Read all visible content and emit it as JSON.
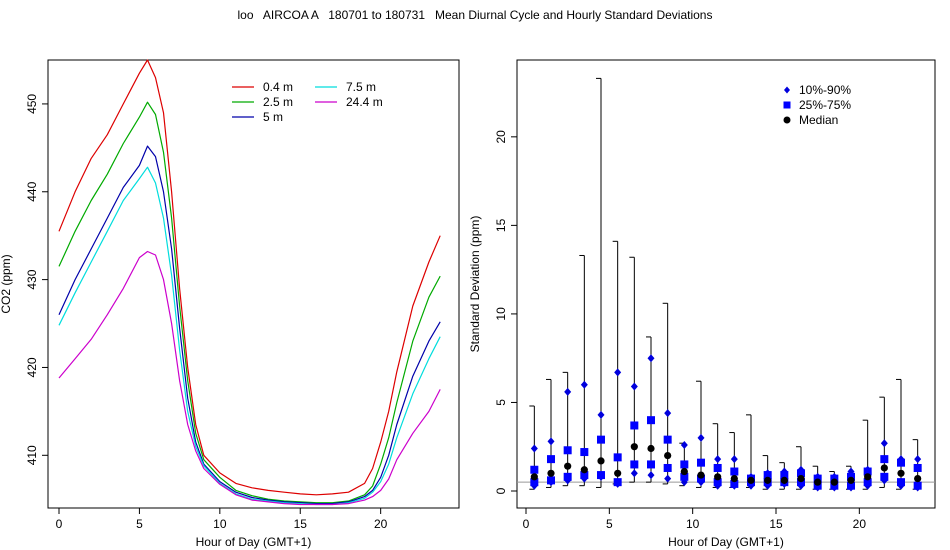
{
  "title": "loo   AIRCOA A   180701 to 180731   Mean Diurnal Cycle and Hourly Standard Deviations",
  "chart_data": [
    {
      "type": "line",
      "xlabel": "Hour of Day (GMT+1)",
      "ylabel": "CO2 (ppm)",
      "xlim": [
        0,
        24
      ],
      "ylim": [
        404,
        455
      ],
      "xticks": [
        "0",
        "5",
        "10",
        "15",
        "20"
      ],
      "yticks": [
        "410",
        "420",
        "430",
        "440",
        "450"
      ],
      "legend_position": "top-right",
      "x": [
        0,
        1,
        2,
        3,
        4,
        5,
        5.5,
        6,
        6.5,
        7,
        7.5,
        8,
        8.5,
        9,
        10,
        11,
        12,
        13,
        14,
        15,
        16,
        17,
        18,
        19,
        19.5,
        20,
        20.5,
        21,
        22,
        23,
        23.7
      ],
      "series": [
        {
          "name": "0.4 m",
          "color": "#dd0000",
          "values": [
            435.5,
            440.0,
            443.8,
            446.5,
            450.0,
            453.5,
            455.0,
            453.0,
            449.0,
            440.0,
            429.0,
            420.0,
            413.5,
            410.0,
            408.0,
            406.8,
            406.3,
            406.0,
            405.8,
            405.6,
            405.5,
            405.6,
            405.8,
            406.8,
            408.5,
            411.5,
            415.0,
            419.5,
            427.0,
            432.0,
            435.0
          ]
        },
        {
          "name": "2.5 m",
          "color": "#00aa00",
          "values": [
            431.5,
            435.5,
            439.0,
            442.0,
            445.5,
            448.5,
            450.2,
            448.8,
            444.5,
            437.0,
            427.0,
            418.5,
            412.5,
            409.5,
            407.5,
            406.0,
            405.4,
            405.0,
            404.8,
            404.7,
            404.6,
            404.6,
            404.8,
            405.5,
            406.5,
            409.0,
            412.0,
            416.0,
            423.0,
            428.0,
            430.4
          ]
        },
        {
          "name": "5 m",
          "color": "#0000aa",
          "values": [
            426.0,
            430.0,
            433.5,
            437.0,
            440.5,
            443.0,
            445.2,
            444.0,
            440.0,
            433.5,
            424.5,
            416.5,
            411.5,
            409.0,
            407.0,
            405.8,
            405.2,
            404.9,
            404.7,
            404.6,
            404.5,
            404.5,
            404.7,
            405.3,
            406.0,
            407.5,
            410.0,
            413.5,
            419.0,
            423.0,
            425.2
          ]
        },
        {
          "name": "7.5 m",
          "color": "#00dddd",
          "values": [
            424.8,
            428.5,
            432.0,
            435.5,
            439.0,
            441.5,
            442.8,
            441.0,
            437.0,
            430.5,
            422.0,
            415.0,
            411.0,
            408.8,
            406.8,
            405.6,
            405.0,
            404.8,
            404.6,
            404.5,
            404.4,
            404.4,
            404.6,
            405.1,
            405.8,
            407.0,
            409.0,
            412.0,
            417.0,
            421.0,
            423.5
          ]
        },
        {
          "name": "24.4 m",
          "color": "#cc00cc",
          "values": [
            418.8,
            421.0,
            423.2,
            426.0,
            429.0,
            432.5,
            433.2,
            432.8,
            430.0,
            425.0,
            418.5,
            413.5,
            410.5,
            408.5,
            406.7,
            405.5,
            404.9,
            404.7,
            404.5,
            404.4,
            404.4,
            404.4,
            404.5,
            404.9,
            405.3,
            406.0,
            407.3,
            409.5,
            412.5,
            415.0,
            417.5
          ]
        }
      ]
    },
    {
      "type": "scatter",
      "xlabel": "Hour of Day (GMT+1)",
      "ylabel": "Standard Deviation (ppm)",
      "xlim": [
        0,
        24
      ],
      "ylim": [
        0,
        24
      ],
      "xticks": [
        "0",
        "5",
        "10",
        "15",
        "20"
      ],
      "yticks": [
        "0",
        "5",
        "10",
        "15",
        "20"
      ],
      "reference_line_y": 0.5,
      "legend_position": "top-right",
      "legend": [
        {
          "label": "10%-90%",
          "marker": "diamond",
          "color": "#0000dd"
        },
        {
          "label": "25%-75%",
          "marker": "square",
          "color": "#0000ff"
        },
        {
          "label": "Median",
          "marker": "circle",
          "color": "#000000"
        }
      ],
      "x": [
        0.5,
        1.5,
        2.5,
        3.5,
        4.5,
        5.5,
        6.5,
        7.5,
        8.5,
        9.5,
        10.5,
        11.5,
        12.5,
        13.5,
        14.5,
        15.5,
        16.5,
        17.5,
        18.5,
        19.5,
        20.5,
        21.5,
        22.5,
        23.5
      ],
      "max": [
        4.8,
        6.3,
        6.7,
        13.3,
        23.3,
        14.1,
        13.2,
        8.7,
        10.6,
        2.7,
        6.2,
        3.8,
        3.3,
        4.3,
        2.0,
        1.6,
        2.5,
        1.4,
        1.1,
        1.4,
        4.0,
        5.3,
        6.3,
        2.9
      ],
      "min": [
        0.1,
        0.2,
        0.3,
        0.3,
        0.2,
        0.4,
        0.5,
        0.5,
        0.4,
        0.3,
        0.2,
        0.2,
        0.2,
        0.2,
        0.1,
        0.1,
        0.1,
        0.1,
        0.1,
        0.1,
        0.1,
        0.2,
        0.1,
        0.1
      ],
      "p10": [
        0.3,
        0.5,
        0.6,
        0.7,
        0.8,
        0.4,
        1.0,
        0.9,
        0.7,
        0.5,
        0.5,
        0.3,
        0.3,
        0.3,
        0.3,
        0.4,
        0.3,
        0.2,
        0.2,
        0.2,
        0.3,
        0.6,
        0.3,
        0.2
      ],
      "p25": [
        0.5,
        0.6,
        0.8,
        0.9,
        0.9,
        0.5,
        1.5,
        1.5,
        1.3,
        0.8,
        0.7,
        0.5,
        0.4,
        0.5,
        0.5,
        0.5,
        0.5,
        0.3,
        0.3,
        0.3,
        0.5,
        0.8,
        0.5,
        0.3
      ],
      "median": [
        0.8,
        1.0,
        1.4,
        1.2,
        1.7,
        1.0,
        2.5,
        2.4,
        2.0,
        1.1,
        0.9,
        0.8,
        0.7,
        0.6,
        0.6,
        0.6,
        0.7,
        0.5,
        0.5,
        0.6,
        0.8,
        1.3,
        1.0,
        0.7
      ],
      "p75": [
        1.2,
        1.8,
        2.3,
        2.2,
        2.9,
        1.9,
        3.7,
        4.0,
        2.9,
        1.5,
        1.6,
        1.3,
        1.1,
        0.7,
        0.9,
        0.9,
        1.0,
        0.7,
        0.7,
        0.8,
        1.1,
        1.8,
        1.6,
        1.3
      ],
      "p90": [
        2.4,
        2.8,
        5.6,
        6.0,
        4.3,
        6.7,
        5.9,
        7.5,
        4.4,
        2.6,
        3.0,
        1.8,
        1.8,
        0.8,
        1.0,
        1.1,
        1.2,
        0.8,
        0.8,
        1.1,
        1.2,
        2.7,
        1.8,
        1.8
      ]
    }
  ]
}
